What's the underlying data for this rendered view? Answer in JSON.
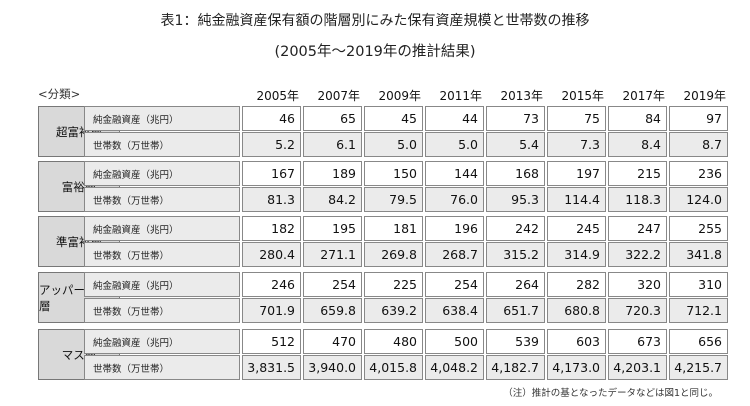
{
  "title": "表1：純金融資産保有額の階層別にみた保有資産規模と世帯数の推移",
  "subtitle": "(2005年～2019年の推計結果)",
  "category_label": "<分類>",
  "years": [
    "2005年",
    "2007年",
    "2009年",
    "2011年",
    "2013年",
    "2015年",
    "2017年",
    "2019年"
  ],
  "metric_labels": {
    "assets": "純金融資産（兆円）",
    "households": "世帯数（万世帯）"
  },
  "groups": [
    {
      "name": "超富裕層",
      "assets": [
        "46",
        "65",
        "45",
        "44",
        "73",
        "75",
        "84",
        "97"
      ],
      "households": [
        "5.2",
        "6.1",
        "5.0",
        "5.0",
        "5.4",
        "7.3",
        "8.4",
        "8.7"
      ]
    },
    {
      "name": "富裕層",
      "assets": [
        "167",
        "189",
        "150",
        "144",
        "168",
        "197",
        "215",
        "236"
      ],
      "households": [
        "81.3",
        "84.2",
        "79.5",
        "76.0",
        "95.3",
        "114.4",
        "118.3",
        "124.0"
      ]
    },
    {
      "name": "準富裕層",
      "assets": [
        "182",
        "195",
        "181",
        "196",
        "242",
        "245",
        "247",
        "255"
      ],
      "households": [
        "280.4",
        "271.1",
        "269.8",
        "268.7",
        "315.2",
        "314.9",
        "322.2",
        "341.8"
      ]
    },
    {
      "name": "アッパーマス層",
      "assets": [
        "246",
        "254",
        "225",
        "254",
        "264",
        "282",
        "320",
        "310"
      ],
      "households": [
        "701.9",
        "659.8",
        "639.2",
        "638.4",
        "651.7",
        "680.8",
        "720.3",
        "712.1"
      ]
    },
    {
      "name": "マス層",
      "assets": [
        "512",
        "470",
        "480",
        "500",
        "539",
        "603",
        "673",
        "656"
      ],
      "households": [
        "3,831.5",
        "3,940.0",
        "4,015.8",
        "4,048.2",
        "4,182.7",
        "4,173.0",
        "4,203.1",
        "4,215.7"
      ]
    }
  ],
  "note": "（注）推計の基となったデータなどは図1と同じ。"
}
